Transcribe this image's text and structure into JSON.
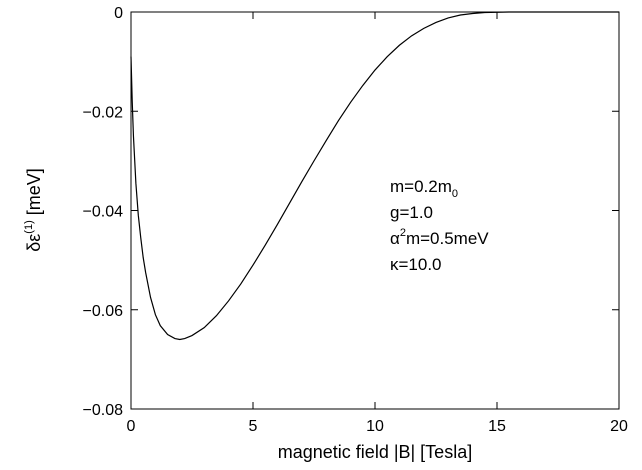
{
  "chart_data": {
    "type": "line",
    "xlabel": "magnetic field |B| [Tesla]",
    "ylabel": {
      "prefix": "δε",
      "superscript": "(1)",
      "suffix": " [meV]"
    },
    "xlim": [
      0,
      20
    ],
    "ylim": [
      -0.08,
      0
    ],
    "x_ticks": [
      0,
      5,
      10,
      15,
      20
    ],
    "x_tick_labels": [
      "0",
      "5",
      "10",
      "15",
      "20"
    ],
    "y_ticks": [
      0,
      -0.02,
      -0.04,
      -0.06,
      -0.08
    ],
    "y_tick_labels": [
      "0",
      "−0.02",
      "−0.04",
      "−0.06",
      "−0.08"
    ],
    "grid": false,
    "series": [
      {
        "x": [
          0,
          0.05,
          0.1,
          0.2,
          0.3,
          0.4,
          0.5,
          0.6,
          0.8,
          1.0,
          1.2,
          1.5,
          1.8,
          2.0,
          2.2,
          2.5,
          3.0,
          3.5,
          4.0,
          4.5,
          5.0,
          5.5,
          6.0,
          6.5,
          7.0,
          7.5,
          8.0,
          8.5,
          9.0,
          9.5,
          10.0,
          10.5,
          11.0,
          11.5,
          12.0,
          12.5,
          13.0,
          13.5,
          14.0,
          14.5,
          15.0,
          15.5,
          16.0,
          16.5,
          17.0,
          17.5,
          18.0,
          19.0,
          20.0
        ],
        "y": [
          -0.009,
          -0.018,
          -0.025,
          -0.0345,
          -0.041,
          -0.0455,
          -0.0495,
          -0.0525,
          -0.0575,
          -0.061,
          -0.0632,
          -0.065,
          -0.0658,
          -0.066,
          -0.0658,
          -0.0652,
          -0.0636,
          -0.0612,
          -0.0582,
          -0.0548,
          -0.051,
          -0.047,
          -0.0428,
          -0.0385,
          -0.0342,
          -0.03,
          -0.0259,
          -0.0219,
          -0.0182,
          -0.0148,
          -0.0117,
          -0.009,
          -0.0067,
          -0.0048,
          -0.0033,
          -0.0021,
          -0.0012,
          -0.0006,
          -0.0003,
          -0.0001,
          -5e-05,
          0.0,
          0.0,
          0.0,
          0.0,
          0.0,
          0.0,
          0.0,
          0.0
        ]
      }
    ],
    "annotations": [
      {
        "base": "m=0.2m",
        "sub": "0"
      },
      {
        "base": "g=1.0"
      },
      {
        "pre": "α",
        "sup": "2",
        "post": "m=0.5meV"
      },
      {
        "base": "κ=10.0"
      }
    ]
  }
}
